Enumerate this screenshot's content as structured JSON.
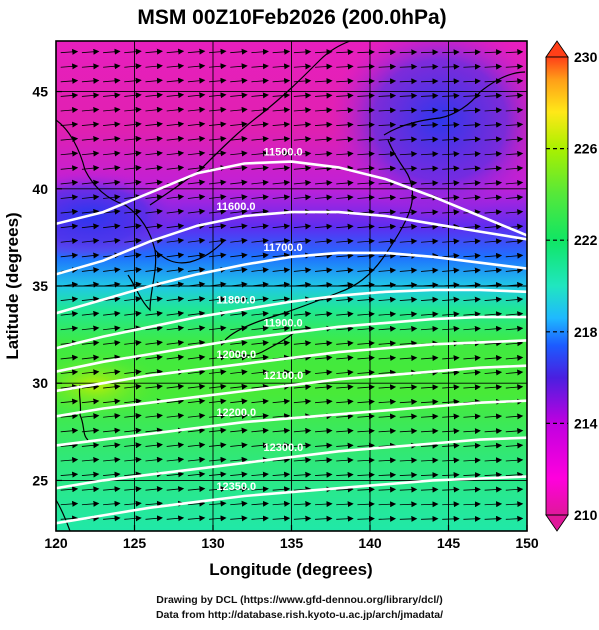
{
  "chart_data": {
    "type": "heatmap",
    "title": "MSM 00Z10Feb2026 (200.0hPa)",
    "xlabel": "Longitude (degrees)",
    "ylabel": "Latitude  (degrees)",
    "xlim": [
      120,
      150
    ],
    "ylim": [
      22.4,
      47.6
    ],
    "x_ticks": [
      "120",
      "125",
      "130",
      "135",
      "140",
      "145",
      "150"
    ],
    "y_ticks": [
      "25",
      "30",
      "35",
      "40",
      "45"
    ],
    "x_tick_values": [
      120,
      125,
      130,
      135,
      140,
      145,
      150
    ],
    "y_tick_values": [
      25,
      30,
      35,
      40,
      45
    ],
    "grid": true,
    "colorbar": {
      "min": 210,
      "max": 230,
      "labels": [
        "230",
        "226",
        "222",
        "218",
        "214",
        "210"
      ],
      "label_values": [
        230,
        226,
        222,
        218,
        214,
        210
      ],
      "colors": [
        "#e0189a",
        "#ff00dd",
        "#c000e0",
        "#4a1fe0",
        "#1c5bff",
        "#1fb9ff",
        "#20e6c0",
        "#10e664",
        "#55e83a",
        "#aaf000",
        "#ffe818",
        "#ff9f18",
        "#ff3f18"
      ]
    },
    "contours": [
      {
        "label": "11500.0",
        "lats": [
          38.2,
          38.8,
          39.8,
          40.8,
          41.3,
          41.4,
          41.1,
          40.5,
          39.6,
          38.6,
          37.6
        ]
      },
      {
        "label": "11600.0",
        "lats": [
          35.6,
          36.3,
          37.3,
          38.1,
          38.6,
          38.8,
          38.8,
          38.6,
          38.2,
          37.8,
          37.4
        ]
      },
      {
        "label": "11700.0",
        "lats": [
          33.6,
          34.3,
          35.0,
          35.6,
          36.1,
          36.5,
          36.7,
          36.7,
          36.5,
          36.2,
          35.9
        ]
      },
      {
        "label": "11800.0",
        "lats": [
          31.8,
          32.4,
          32.9,
          33.4,
          33.8,
          34.2,
          34.5,
          34.7,
          34.8,
          34.8,
          34.7
        ]
      },
      {
        "label": "11900.0",
        "lats": [
          30.6,
          31.1,
          31.5,
          31.9,
          32.3,
          32.6,
          32.9,
          33.1,
          33.3,
          33.4,
          33.4
        ]
      },
      {
        "label": "12000.0",
        "lats": [
          29.6,
          30.0,
          30.4,
          30.7,
          31.0,
          31.3,
          31.6,
          31.8,
          32.0,
          32.1,
          32.2
        ]
      },
      {
        "label": "12100.0",
        "lats": [
          28.3,
          28.7,
          29.0,
          29.3,
          29.6,
          29.9,
          30.2,
          30.4,
          30.6,
          30.8,
          30.9
        ]
      },
      {
        "label": "12200.0",
        "lats": [
          26.8,
          27.1,
          27.4,
          27.7,
          28.0,
          28.2,
          28.4,
          28.6,
          28.8,
          29.0,
          29.1
        ]
      },
      {
        "label": "12300.0",
        "lats": [
          24.6,
          25.0,
          25.3,
          25.6,
          25.9,
          26.2,
          26.5,
          26.7,
          26.9,
          27.1,
          27.2
        ]
      },
      {
        "label": "12350.0",
        "lats": [
          22.8,
          23.2,
          23.6,
          23.9,
          24.2,
          24.4,
          24.6,
          24.8,
          25.0,
          25.1,
          25.2
        ]
      }
    ],
    "contour_lons": [
      120,
      123,
      126,
      129,
      132,
      135,
      138,
      141,
      144,
      147,
      150
    ]
  },
  "footer": {
    "line1": "Drawing by DCL (https://www.gfd-dennou.org/library/dcl/)",
    "line2": "Data from http://database.rish.kyoto-u.ac.jp/arch/jmadata/"
  }
}
